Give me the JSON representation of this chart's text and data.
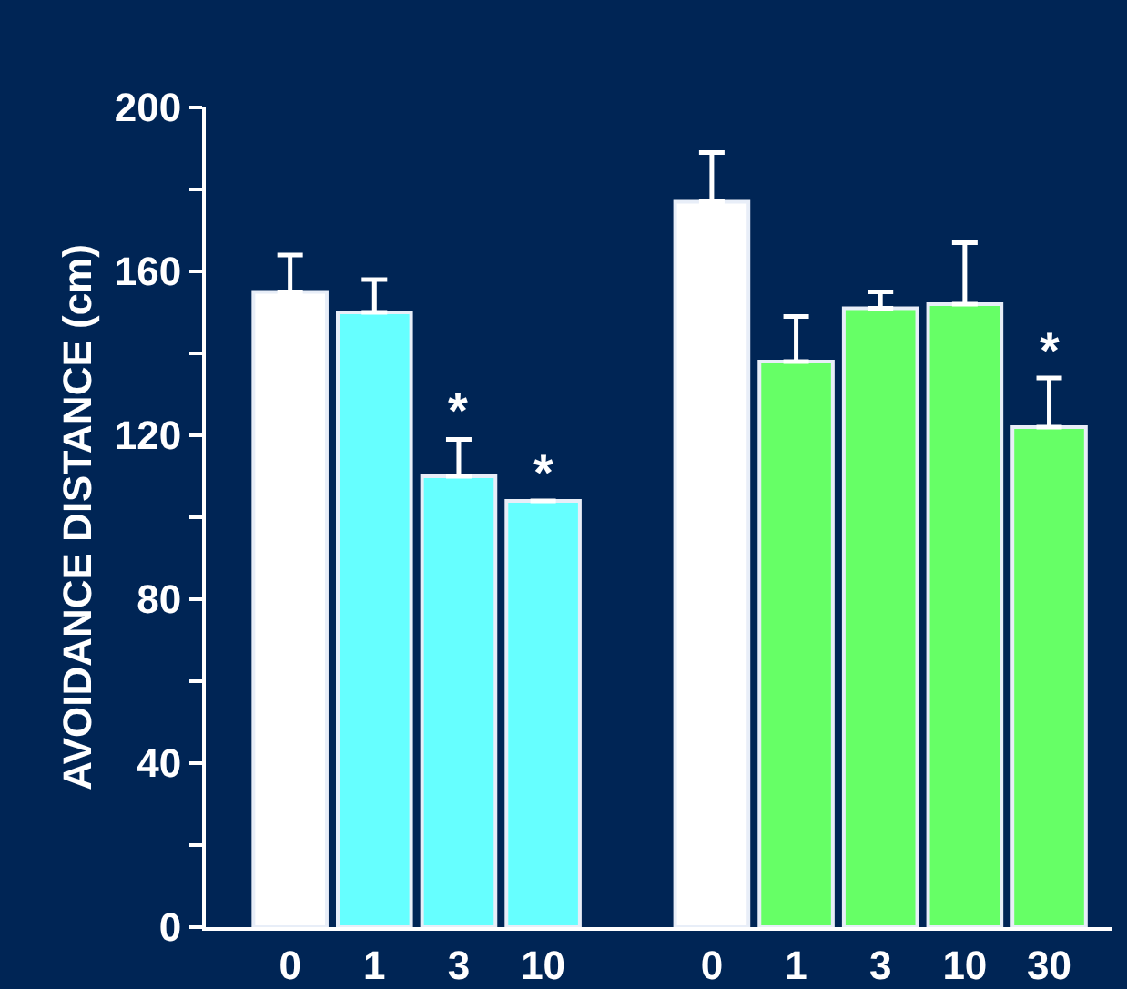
{
  "chart_data": {
    "type": "bar",
    "ylabel": "AVOIDANCE DISTANCE (cm)",
    "categories": [
      "0",
      "1",
      "3",
      "10",
      null,
      "0",
      "1",
      "3",
      "10",
      "30"
    ],
    "values": [
      155,
      150,
      110,
      104,
      null,
      177,
      138,
      151,
      152,
      122
    ],
    "colors": [
      "#ffffff",
      "#66ffff",
      "#66ffff",
      "#66ffff",
      "#66ffff",
      "#ffffff",
      "#66ff66",
      "#66ff66",
      "#66ff66",
      "#66ff66"
    ],
    "errors": [
      [
        155,
        164
      ],
      [
        150,
        158
      ],
      [
        110,
        119
      ],
      null,
      null,
      [
        177,
        189
      ],
      [
        138,
        149
      ],
      [
        151,
        155
      ],
      [
        152,
        167
      ],
      [
        122,
        134
      ]
    ],
    "value_labels": [
      null,
      null,
      "*",
      "*",
      null,
      null,
      null,
      null,
      null,
      "*"
    ],
    "ylim": [
      0,
      200
    ],
    "yticks": [
      0,
      {
        "value": 20,
        "label": null
      },
      40,
      {
        "value": 60,
        "label": null
      },
      80,
      {
        "value": 100,
        "label": null
      },
      120,
      {
        "value": 140,
        "label": null
      },
      160,
      {
        "value": 180,
        "label": null
      },
      200
    ]
  }
}
